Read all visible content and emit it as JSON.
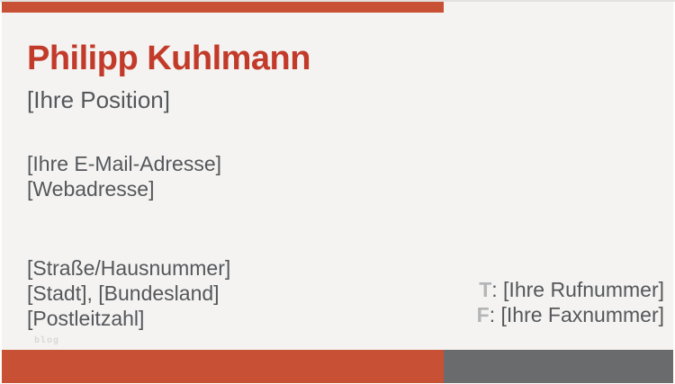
{
  "card": {
    "name": "Philipp Kuhlmann",
    "position": "[Ihre Position]",
    "email": "[Ihre E-Mail-Adresse]",
    "website": "[Webadresse]",
    "address": {
      "line1": "[Straße/Hausnummer]",
      "line2": "[Stadt], [Bundesland]",
      "line3": "[Postleitzahl]"
    },
    "contact": {
      "phone": {
        "label": "T",
        "value": ": [Ihre Rufnummer]"
      },
      "fax": {
        "label": "F",
        "value": ": [Ihre Faxnummer]"
      }
    },
    "watermark": "blog"
  },
  "colors": {
    "accent_red": "#c85034",
    "name_red": "#c23b2a",
    "bar_gray": "#6a6b6d",
    "text_dark": "#54575b",
    "label_light_gray": "#b3b5b7",
    "background": "#f4f3f1"
  }
}
